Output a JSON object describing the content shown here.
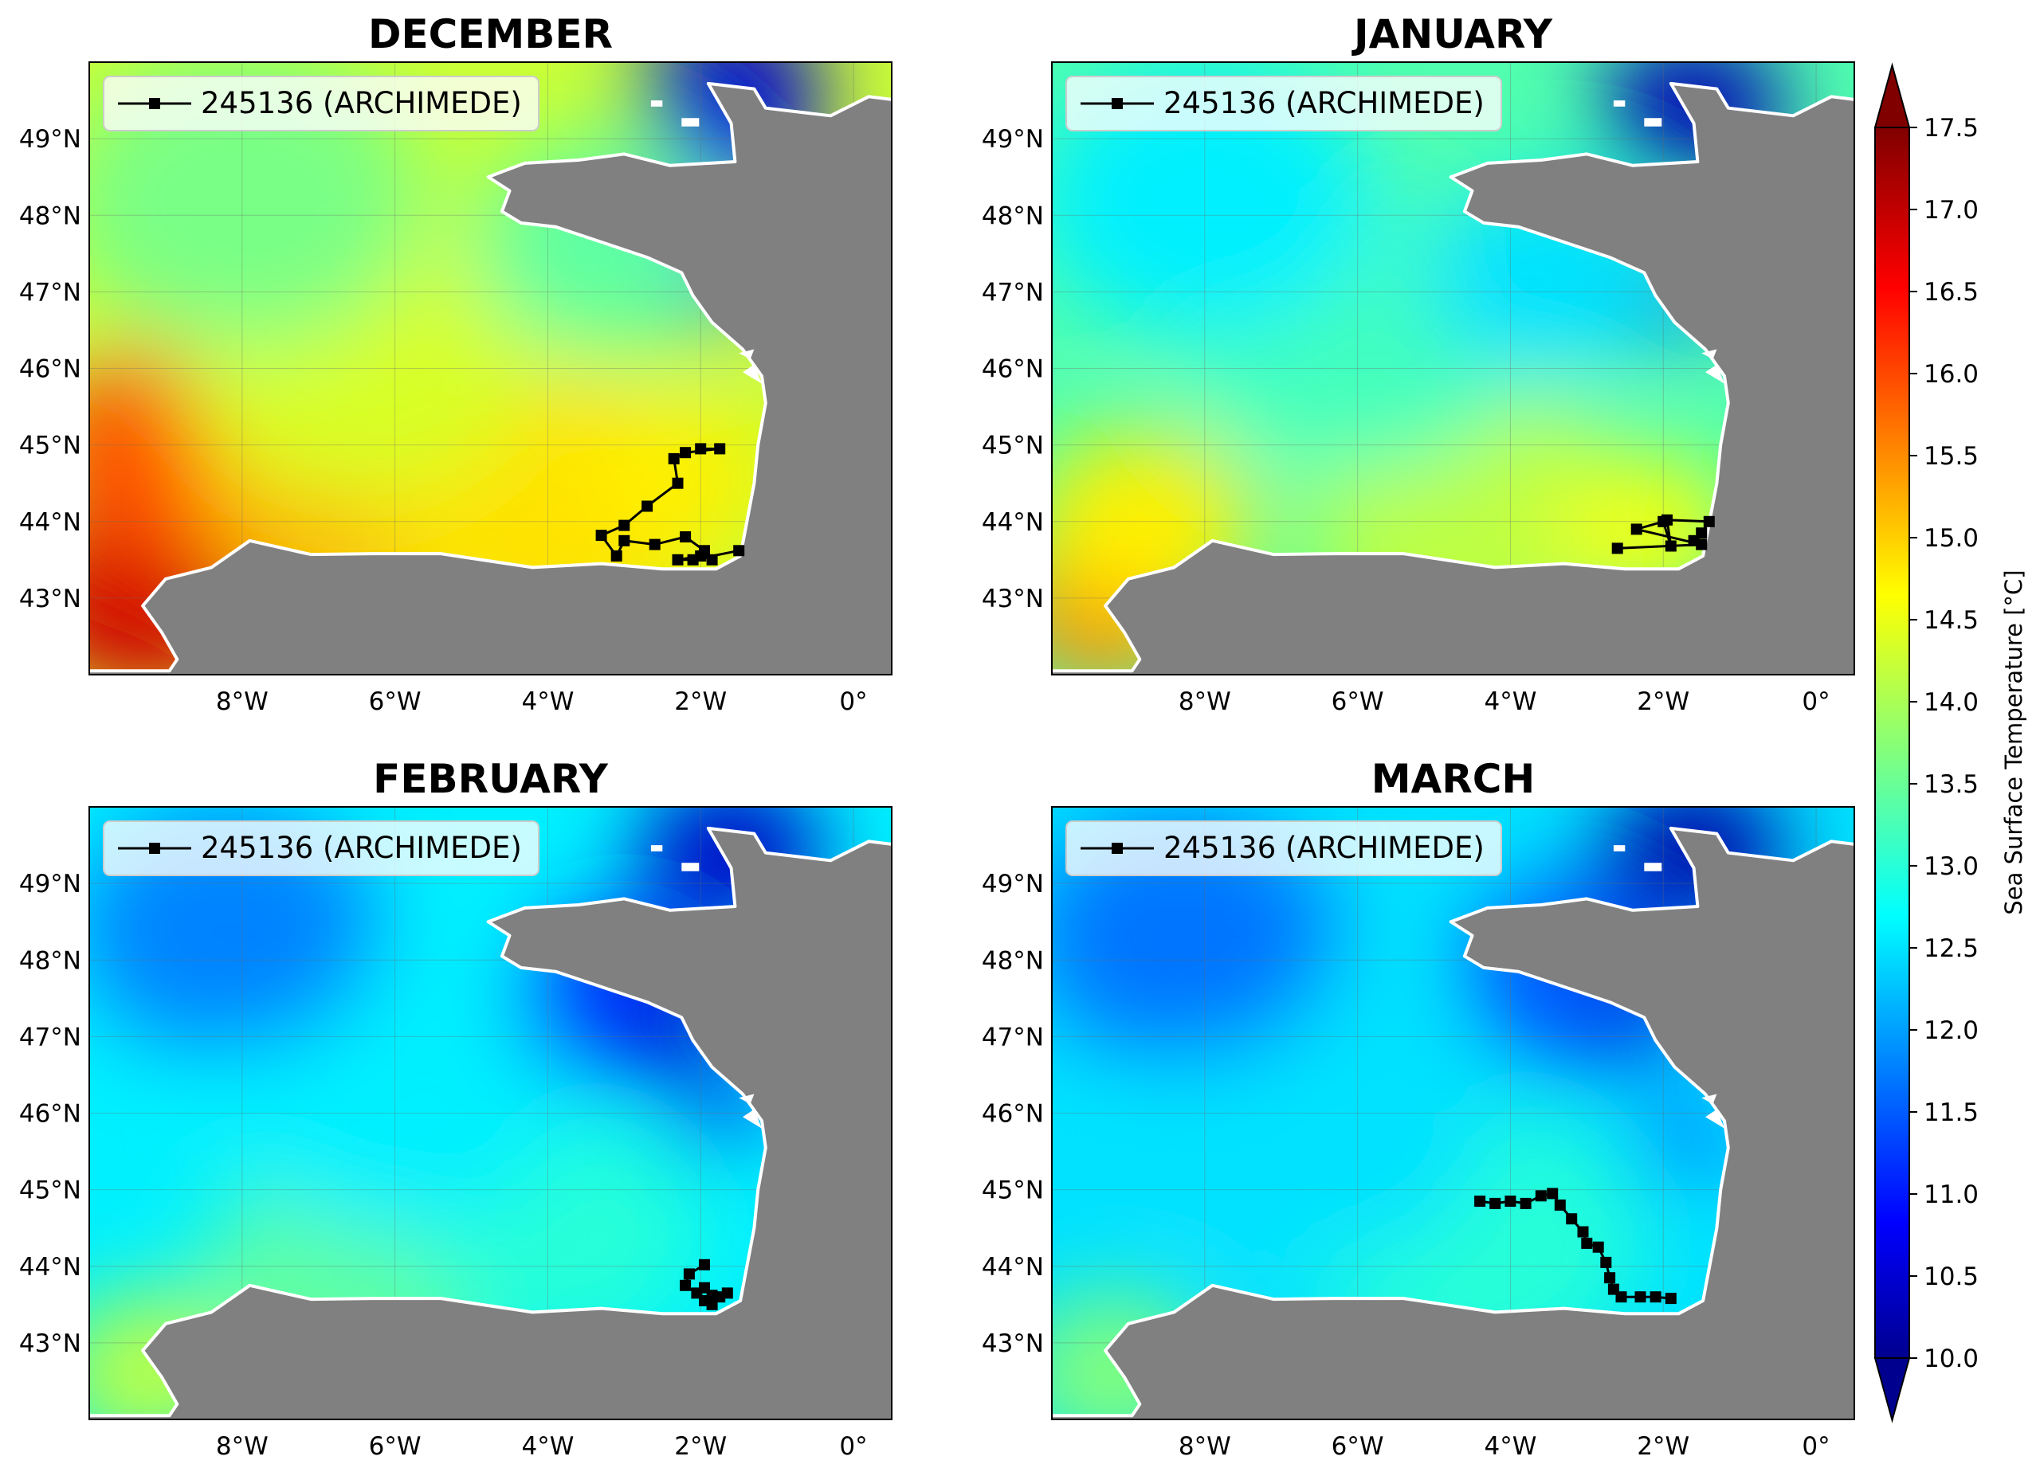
{
  "panels": [
    {
      "title": "DECEMBER",
      "legend_label": "245136 (ARCHIMEDE)",
      "regime": "warm",
      "track": [
        [
          -2.0,
          44.95
        ],
        [
          -1.75,
          44.95
        ],
        [
          -2.2,
          44.9
        ],
        [
          -2.35,
          44.82
        ],
        [
          -2.3,
          44.5
        ],
        [
          -2.7,
          44.2
        ],
        [
          -3.0,
          43.95
        ],
        [
          -3.3,
          43.82
        ],
        [
          -3.1,
          43.55
        ],
        [
          -3.0,
          43.75
        ],
        [
          -2.6,
          43.7
        ],
        [
          -2.2,
          43.8
        ],
        [
          -1.95,
          43.62
        ],
        [
          -1.85,
          43.5
        ],
        [
          -2.0,
          43.55
        ],
        [
          -2.3,
          43.5
        ],
        [
          -2.1,
          43.5
        ],
        [
          -1.5,
          43.62
        ]
      ]
    },
    {
      "title": "JANUARY",
      "legend_label": "245136 (ARCHIMEDE)",
      "regime": "mild",
      "track": [
        [
          -2.6,
          43.65
        ],
        [
          -1.5,
          43.7
        ],
        [
          -2.35,
          43.9
        ],
        [
          -2.0,
          44.0
        ],
        [
          -1.9,
          43.68
        ],
        [
          -1.95,
          44.02
        ],
        [
          -1.4,
          44.0
        ],
        [
          -1.5,
          43.85
        ],
        [
          -1.6,
          43.75
        ]
      ]
    },
    {
      "title": "FEBRUARY",
      "legend_label": "245136 (ARCHIMEDE)",
      "regime": "cool",
      "track": [
        [
          -1.95,
          44.02
        ],
        [
          -2.15,
          43.9
        ],
        [
          -2.2,
          43.75
        ],
        [
          -2.05,
          43.65
        ],
        [
          -1.95,
          43.55
        ],
        [
          -1.85,
          43.5
        ],
        [
          -1.75,
          43.6
        ],
        [
          -1.65,
          43.65
        ],
        [
          -1.85,
          43.62
        ],
        [
          -1.95,
          43.72
        ]
      ]
    },
    {
      "title": "MARCH",
      "legend_label": "245136 (ARCHIMEDE)",
      "regime": "cold",
      "track": [
        [
          -4.4,
          44.85
        ],
        [
          -4.2,
          44.82
        ],
        [
          -4.0,
          44.85
        ],
        [
          -3.8,
          44.82
        ],
        [
          -3.6,
          44.92
        ],
        [
          -3.45,
          44.95
        ],
        [
          -3.35,
          44.8
        ],
        [
          -3.2,
          44.62
        ],
        [
          -3.05,
          44.45
        ],
        [
          -3.0,
          44.3
        ],
        [
          -2.85,
          44.25
        ],
        [
          -2.75,
          44.05
        ],
        [
          -2.7,
          43.85
        ],
        [
          -2.65,
          43.7
        ],
        [
          -2.55,
          43.6
        ],
        [
          -2.3,
          43.6
        ],
        [
          -2.1,
          43.6
        ],
        [
          -1.9,
          43.58
        ]
      ]
    }
  ],
  "axes": {
    "x_ticks": [
      "8°W",
      "6°W",
      "4°W",
      "2°W",
      "0°"
    ],
    "y_ticks": [
      "49°N",
      "48°N",
      "47°N",
      "46°N",
      "45°N",
      "44°N",
      "43°N"
    ]
  },
  "colorbar": {
    "label": "Sea Surface Temperature [°C]",
    "ticks": [
      "10.0",
      "10.5",
      "11.0",
      "11.5",
      "12.0",
      "12.5",
      "13.0",
      "13.5",
      "14.0",
      "14.5",
      "15.0",
      "15.5",
      "16.0",
      "16.5",
      "17.0",
      "17.5"
    ],
    "min": 10.0,
    "max": 17.5
  },
  "colors": {
    "land": "#808080",
    "track": "#000000"
  }
}
